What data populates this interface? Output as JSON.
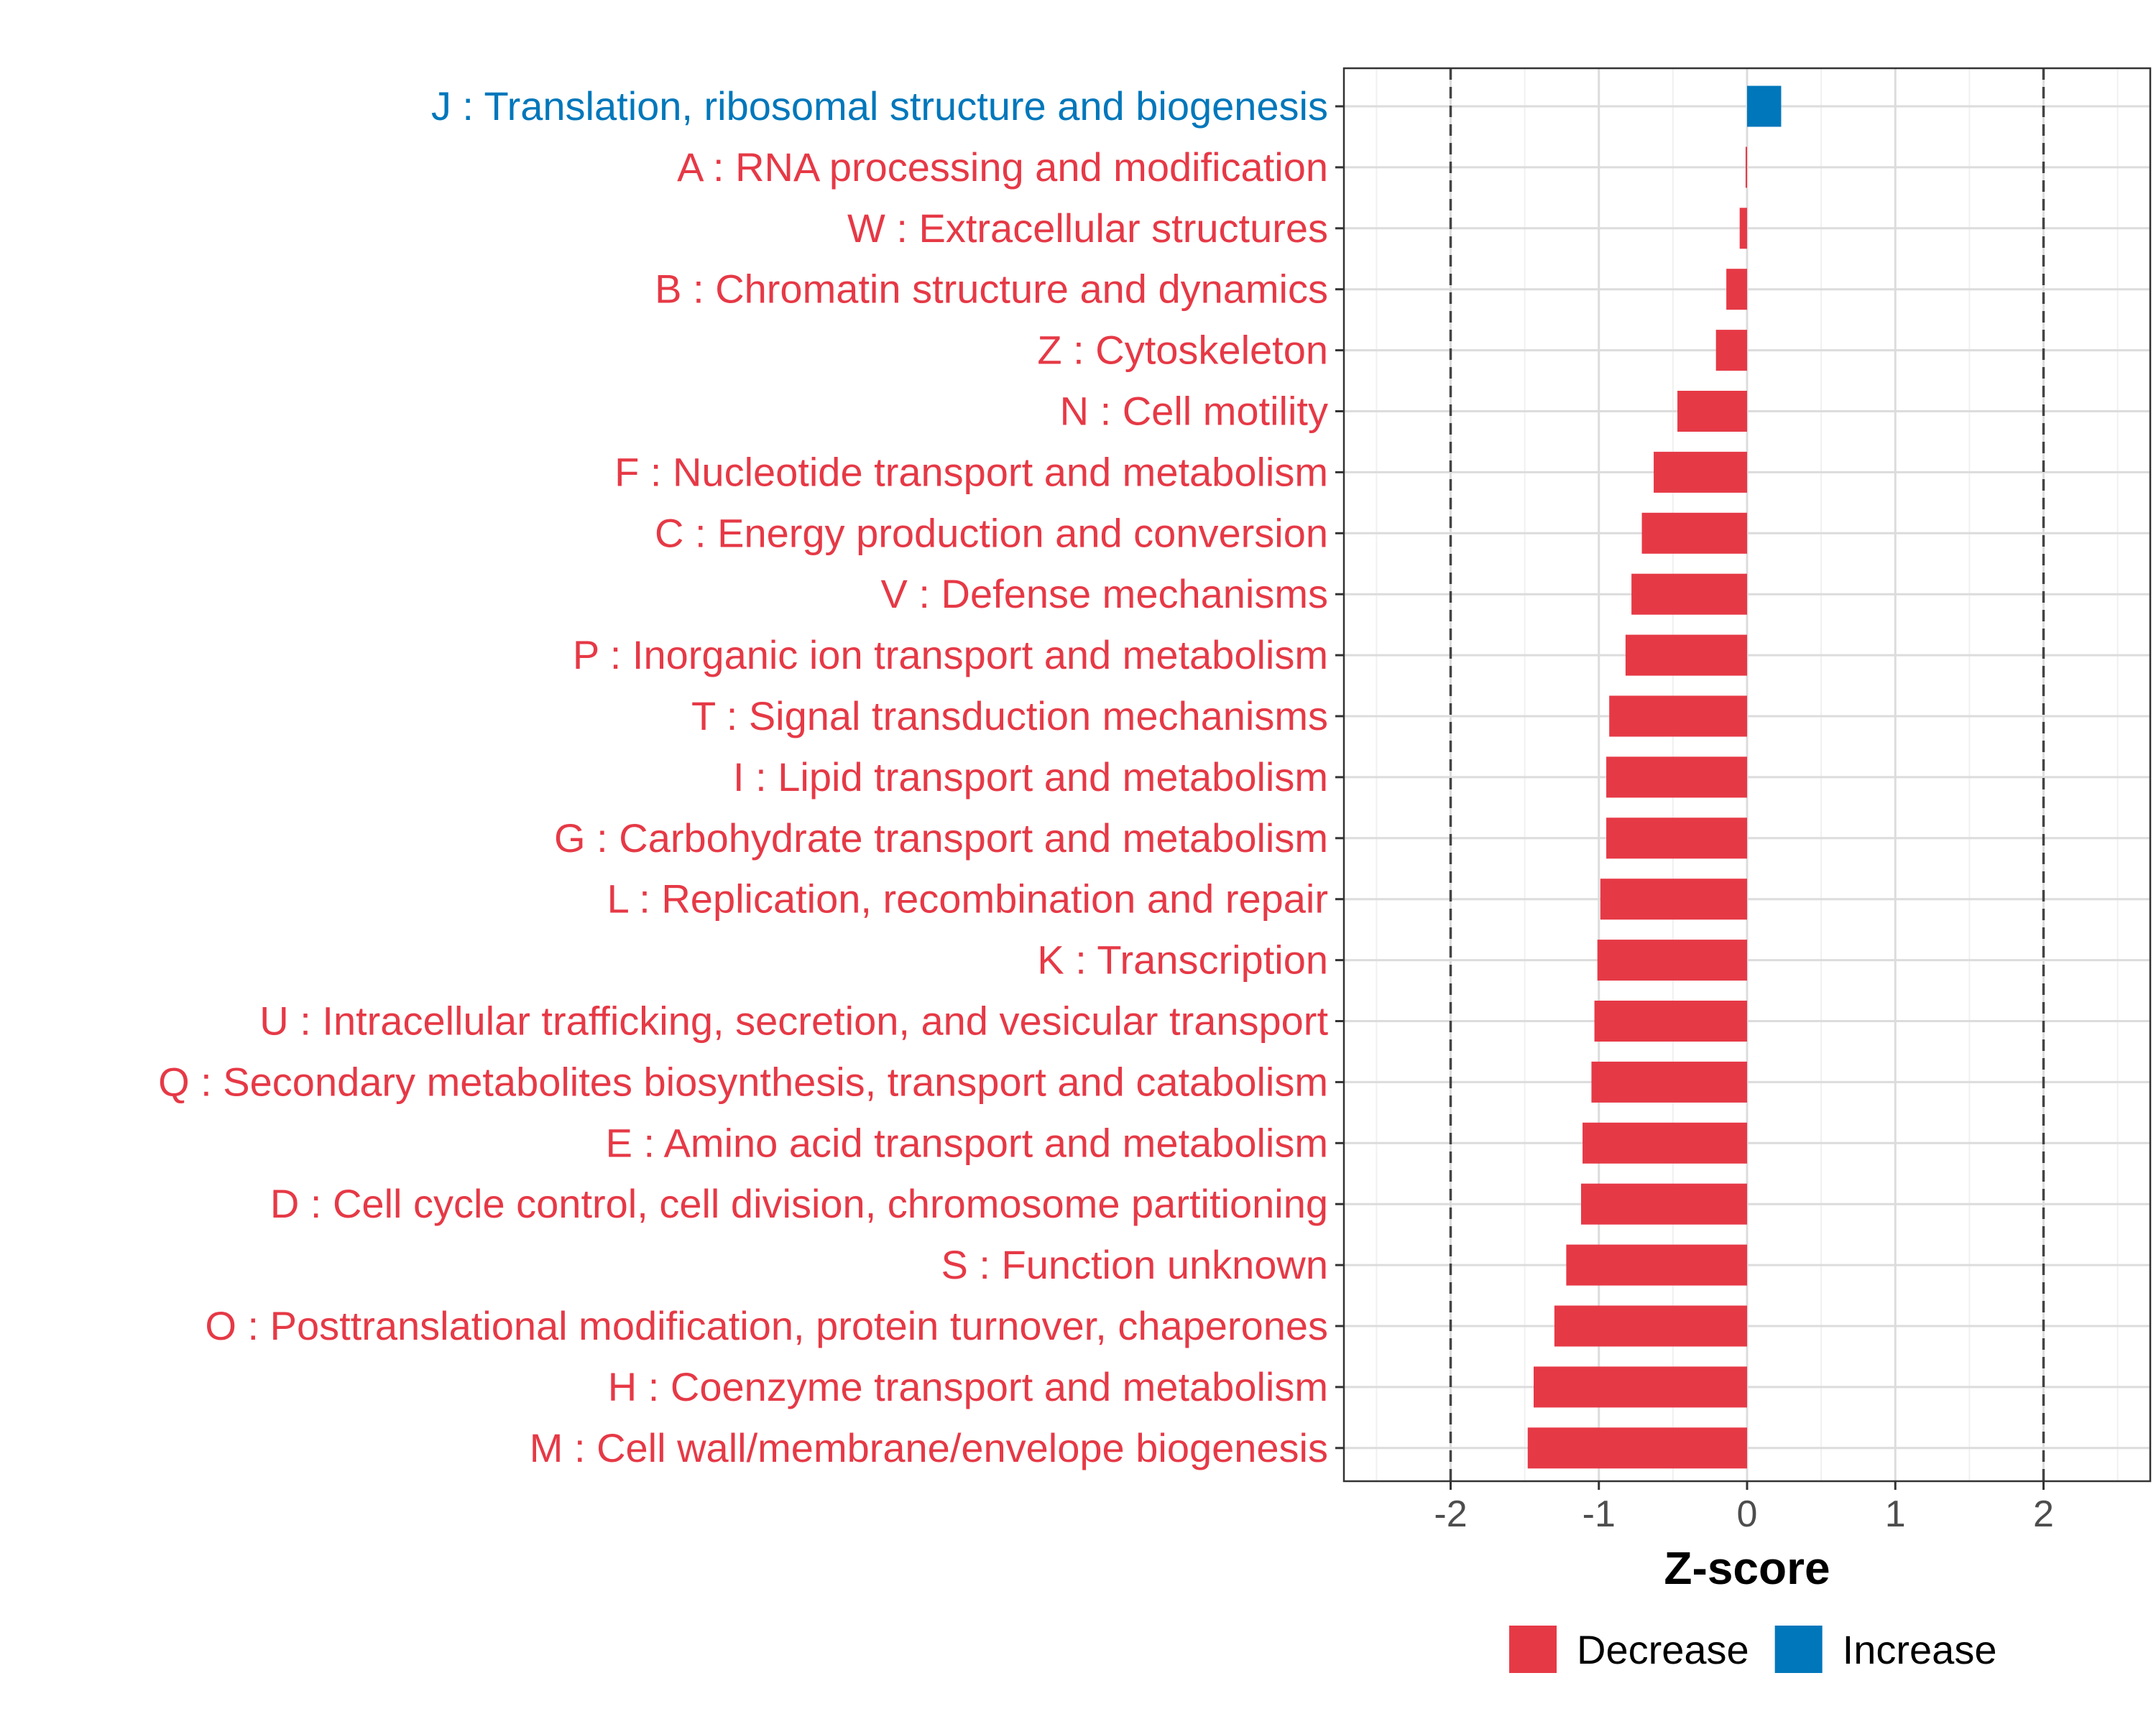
{
  "chart_data": {
    "type": "bar",
    "orientation": "horizontal",
    "xlabel": "Z-score",
    "xlim": [
      -2.72,
      2.72
    ],
    "xticks": [
      -2,
      -1,
      0,
      1,
      2
    ],
    "xtick_labels": [
      "-2",
      "-1",
      "0",
      "1",
      "2"
    ],
    "reference_lines": [
      -2,
      2
    ],
    "grid": true,
    "legend_position": "bottom",
    "colors": {
      "Decrease": "#E63946",
      "Increase": "#0077BB"
    },
    "legend": [
      {
        "label": "Decrease",
        "color": "#E63946"
      },
      {
        "label": "Increase",
        "color": "#0077BB"
      }
    ],
    "categories": [
      "J : Translation, ribosomal structure and biogenesis",
      "A : RNA processing and modification",
      "W : Extracellular structures",
      "B : Chromatin structure and dynamics",
      "Z : Cytoskeleton",
      "N : Cell motility",
      "F : Nucleotide transport and metabolism",
      "C : Energy production and conversion",
      "V : Defense mechanisms",
      "P : Inorganic ion transport and metabolism",
      "T : Signal transduction mechanisms",
      "I : Lipid transport and metabolism",
      "G : Carbohydrate transport and metabolism",
      "L : Replication, recombination and repair",
      "K : Transcription",
      "U : Intracellular trafficking, secretion, and vesicular transport",
      "Q : Secondary metabolites biosynthesis, transport and catabolism",
      "E : Amino acid transport and metabolism",
      "D : Cell cycle control, cell division, chromosome partitioning",
      "S : Function unknown",
      "O : Posttranslational modification, protein turnover, chaperones",
      "H : Coenzyme transport and metabolism",
      "M : Cell wall/membrane/envelope biogenesis"
    ],
    "values": [
      0.23,
      -0.01,
      -0.05,
      -0.14,
      -0.21,
      -0.47,
      -0.63,
      -0.71,
      -0.78,
      -0.82,
      -0.93,
      -0.95,
      -0.95,
      -0.99,
      -1.01,
      -1.03,
      -1.05,
      -1.11,
      -1.12,
      -1.22,
      -1.3,
      -1.44,
      -1.48
    ],
    "direction": [
      "Increase",
      "Decrease",
      "Decrease",
      "Decrease",
      "Decrease",
      "Decrease",
      "Decrease",
      "Decrease",
      "Decrease",
      "Decrease",
      "Decrease",
      "Decrease",
      "Decrease",
      "Decrease",
      "Decrease",
      "Decrease",
      "Decrease",
      "Decrease",
      "Decrease",
      "Decrease",
      "Decrease",
      "Decrease",
      "Decrease"
    ]
  }
}
